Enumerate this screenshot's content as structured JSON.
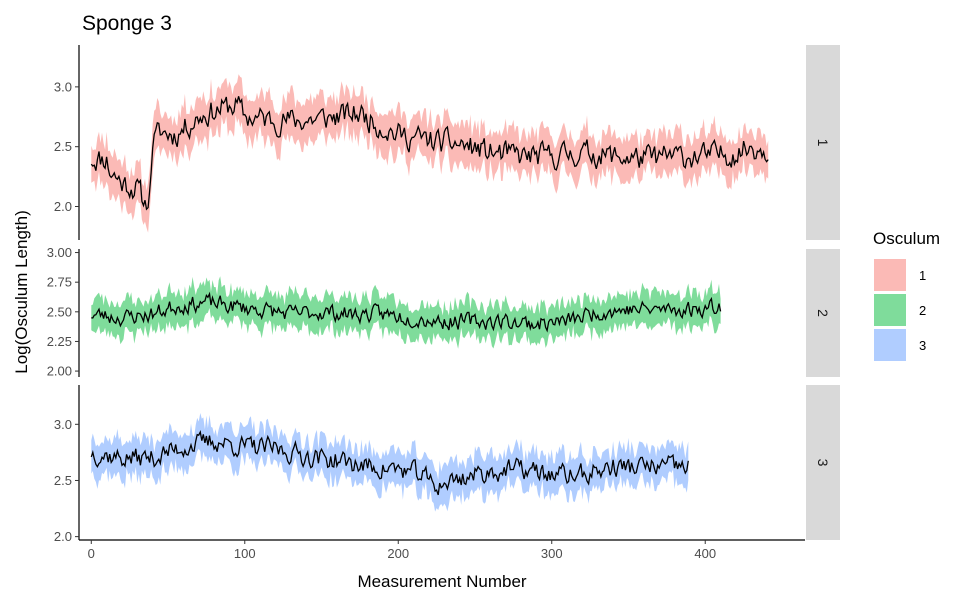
{
  "chart_data": {
    "type": "line",
    "title": "Sponge 3",
    "xlabel": "Measurement Number",
    "ylabel": "Log(Osculum Length)",
    "xlim": [
      -8,
      465
    ],
    "xticks": [
      0,
      100,
      200,
      300,
      400
    ],
    "grid": false,
    "legend": {
      "title": "Osculum",
      "position": "right",
      "entries": [
        "1",
        "2",
        "3"
      ]
    },
    "colors": {
      "1": "#F8766D",
      "2": "#00BA38",
      "3": "#619CFF",
      "line": "#000000",
      "strip": "#d9d9d9"
    },
    "facets": [
      {
        "strip_label": "1",
        "ylim": [
          1.72,
          3.35
        ],
        "yticks": [
          2.0,
          2.5,
          3.0
        ],
        "ytick_labels": [
          "2.0",
          "2.5",
          "3.0"
        ],
        "n": 442,
        "segments": [
          [
            0,
            2.4
          ],
          [
            10,
            2.4
          ],
          [
            12,
            2.3
          ],
          [
            20,
            2.2
          ],
          [
            30,
            2.15
          ],
          [
            35,
            2.02
          ],
          [
            38,
            2.1
          ],
          [
            40,
            2.55
          ],
          [
            45,
            2.62
          ],
          [
            55,
            2.6
          ],
          [
            70,
            2.75
          ],
          [
            85,
            2.82
          ],
          [
            95,
            2.85
          ],
          [
            100,
            2.75
          ],
          [
            120,
            2.72
          ],
          [
            140,
            2.72
          ],
          [
            160,
            2.75
          ],
          [
            175,
            2.78
          ],
          [
            185,
            2.7
          ],
          [
            200,
            2.6
          ],
          [
            220,
            2.55
          ],
          [
            240,
            2.52
          ],
          [
            260,
            2.45
          ],
          [
            280,
            2.42
          ],
          [
            300,
            2.42
          ],
          [
            320,
            2.45
          ],
          [
            340,
            2.42
          ],
          [
            360,
            2.4
          ],
          [
            380,
            2.42
          ],
          [
            400,
            2.42
          ],
          [
            420,
            2.45
          ],
          [
            430,
            2.5
          ],
          [
            441,
            2.48
          ]
        ],
        "noise": 0.09,
        "band": 0.17,
        "seed": 11
      },
      {
        "strip_label": "2",
        "ylim": [
          1.95,
          3.03
        ],
        "yticks": [
          2.0,
          2.25,
          2.5,
          2.75,
          3.0
        ],
        "ytick_labels": [
          "2.00",
          "2.25",
          "2.50",
          "2.75",
          "3.00"
        ],
        "n": 411,
        "segments": [
          [
            0,
            2.48
          ],
          [
            20,
            2.45
          ],
          [
            40,
            2.48
          ],
          [
            55,
            2.55
          ],
          [
            75,
            2.58
          ],
          [
            90,
            2.55
          ],
          [
            110,
            2.52
          ],
          [
            130,
            2.48
          ],
          [
            150,
            2.5
          ],
          [
            170,
            2.48
          ],
          [
            190,
            2.48
          ],
          [
            210,
            2.45
          ],
          [
            230,
            2.42
          ],
          [
            250,
            2.42
          ],
          [
            270,
            2.42
          ],
          [
            290,
            2.4
          ],
          [
            310,
            2.42
          ],
          [
            330,
            2.5
          ],
          [
            350,
            2.52
          ],
          [
            370,
            2.52
          ],
          [
            390,
            2.52
          ],
          [
            410,
            2.55
          ]
        ],
        "noise": 0.06,
        "band": 0.14,
        "seed": 23
      },
      {
        "strip_label": "3",
        "ylim": [
          1.97,
          3.35
        ],
        "yticks": [
          2.0,
          2.5,
          3.0
        ],
        "ytick_labels": [
          "2.0",
          "2.5",
          "3.0"
        ],
        "n": 390,
        "segments": [
          [
            0,
            2.75
          ],
          [
            20,
            2.7
          ],
          [
            40,
            2.7
          ],
          [
            60,
            2.8
          ],
          [
            80,
            2.85
          ],
          [
            100,
            2.8
          ],
          [
            120,
            2.78
          ],
          [
            140,
            2.72
          ],
          [
            160,
            2.68
          ],
          [
            180,
            2.62
          ],
          [
            200,
            2.6
          ],
          [
            215,
            2.55
          ],
          [
            225,
            2.45
          ],
          [
            240,
            2.52
          ],
          [
            260,
            2.58
          ],
          [
            280,
            2.6
          ],
          [
            300,
            2.55
          ],
          [
            320,
            2.55
          ],
          [
            340,
            2.62
          ],
          [
            360,
            2.62
          ],
          [
            389,
            2.62
          ]
        ],
        "noise": 0.08,
        "band": 0.16,
        "seed": 37
      }
    ]
  }
}
